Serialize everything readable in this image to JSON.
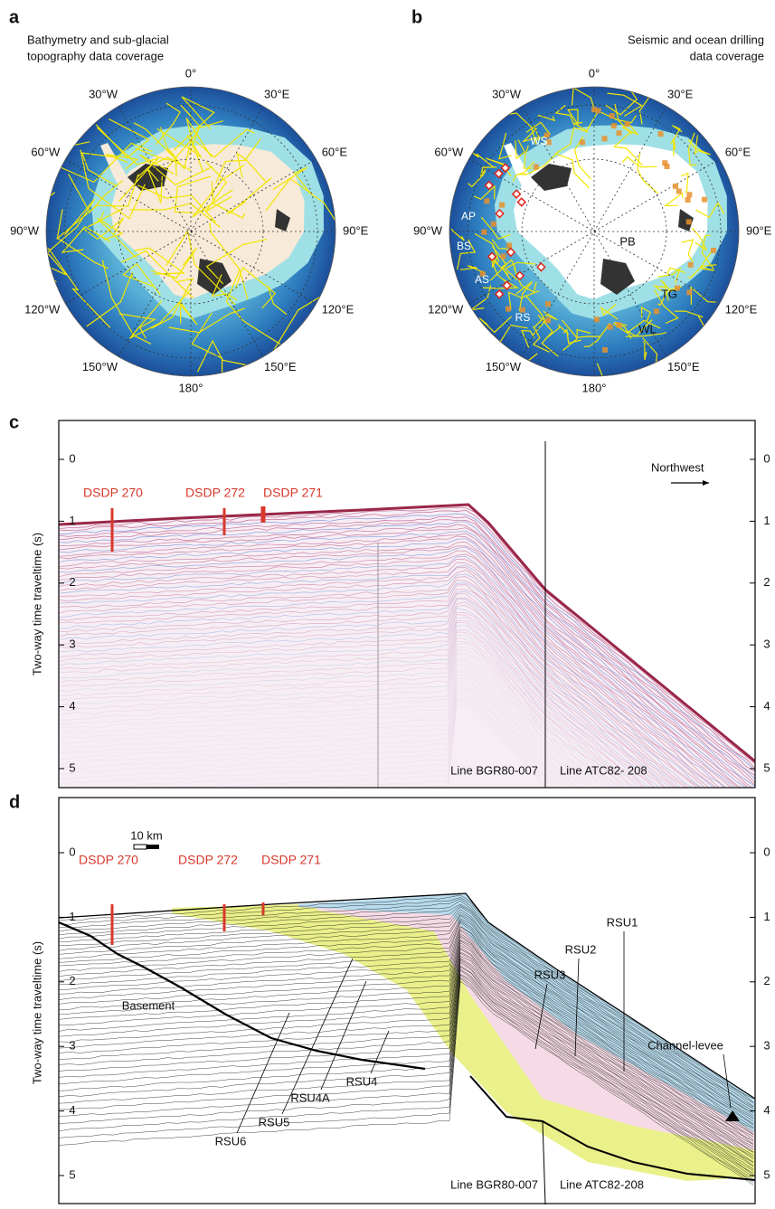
{
  "panel_a": {
    "letter": "a",
    "caption": [
      "Bathymetry and sub-glacial",
      "topography data coverage"
    ],
    "longitudes": [
      "0°",
      "30°E",
      "60°E",
      "90°E",
      "120°E",
      "150°E",
      "180°",
      "150°W",
      "120°W",
      "90°W",
      "60°W",
      "30°W"
    ]
  },
  "panel_b": {
    "letter": "b",
    "caption": [
      "Seismic and ocean drilling",
      "data coverage"
    ],
    "longitudes": [
      "0°",
      "30°E",
      "60°E",
      "90°E",
      "120°E",
      "150°E",
      "180°",
      "150°W",
      "120°W",
      "90°W",
      "60°W",
      "30°W"
    ],
    "regions": [
      "WS",
      "AP",
      "BS",
      "AS",
      "RS",
      "PB",
      "TG",
      "WL"
    ]
  },
  "panel_c": {
    "letter": "c",
    "y_label": "Two-way time traveltime (s)",
    "yticks": [
      0,
      1,
      2,
      3,
      4,
      5
    ],
    "sites": [
      "DSDP 270",
      "DSDP 272",
      "DSDP 271"
    ],
    "direction": "Northwest",
    "lines": [
      "Line BGR80-007",
      "Line ATC82- 208"
    ]
  },
  "panel_d": {
    "letter": "d",
    "y_label": "Two-way time traveltime (s)",
    "yticks": [
      0,
      1,
      2,
      3,
      4,
      5
    ],
    "scale_bar": "10 km",
    "sites": [
      "DSDP 270",
      "DSDP 272",
      "DSDP 271"
    ],
    "units": [
      "Basement",
      "RSU1",
      "RSU2",
      "RSU3",
      "Channel-levee",
      "RSU4",
      "RSU4A",
      "RSU5",
      "RSU6"
    ],
    "lines": [
      "Line BGR80-007",
      "Line ATC82-208"
    ]
  }
}
